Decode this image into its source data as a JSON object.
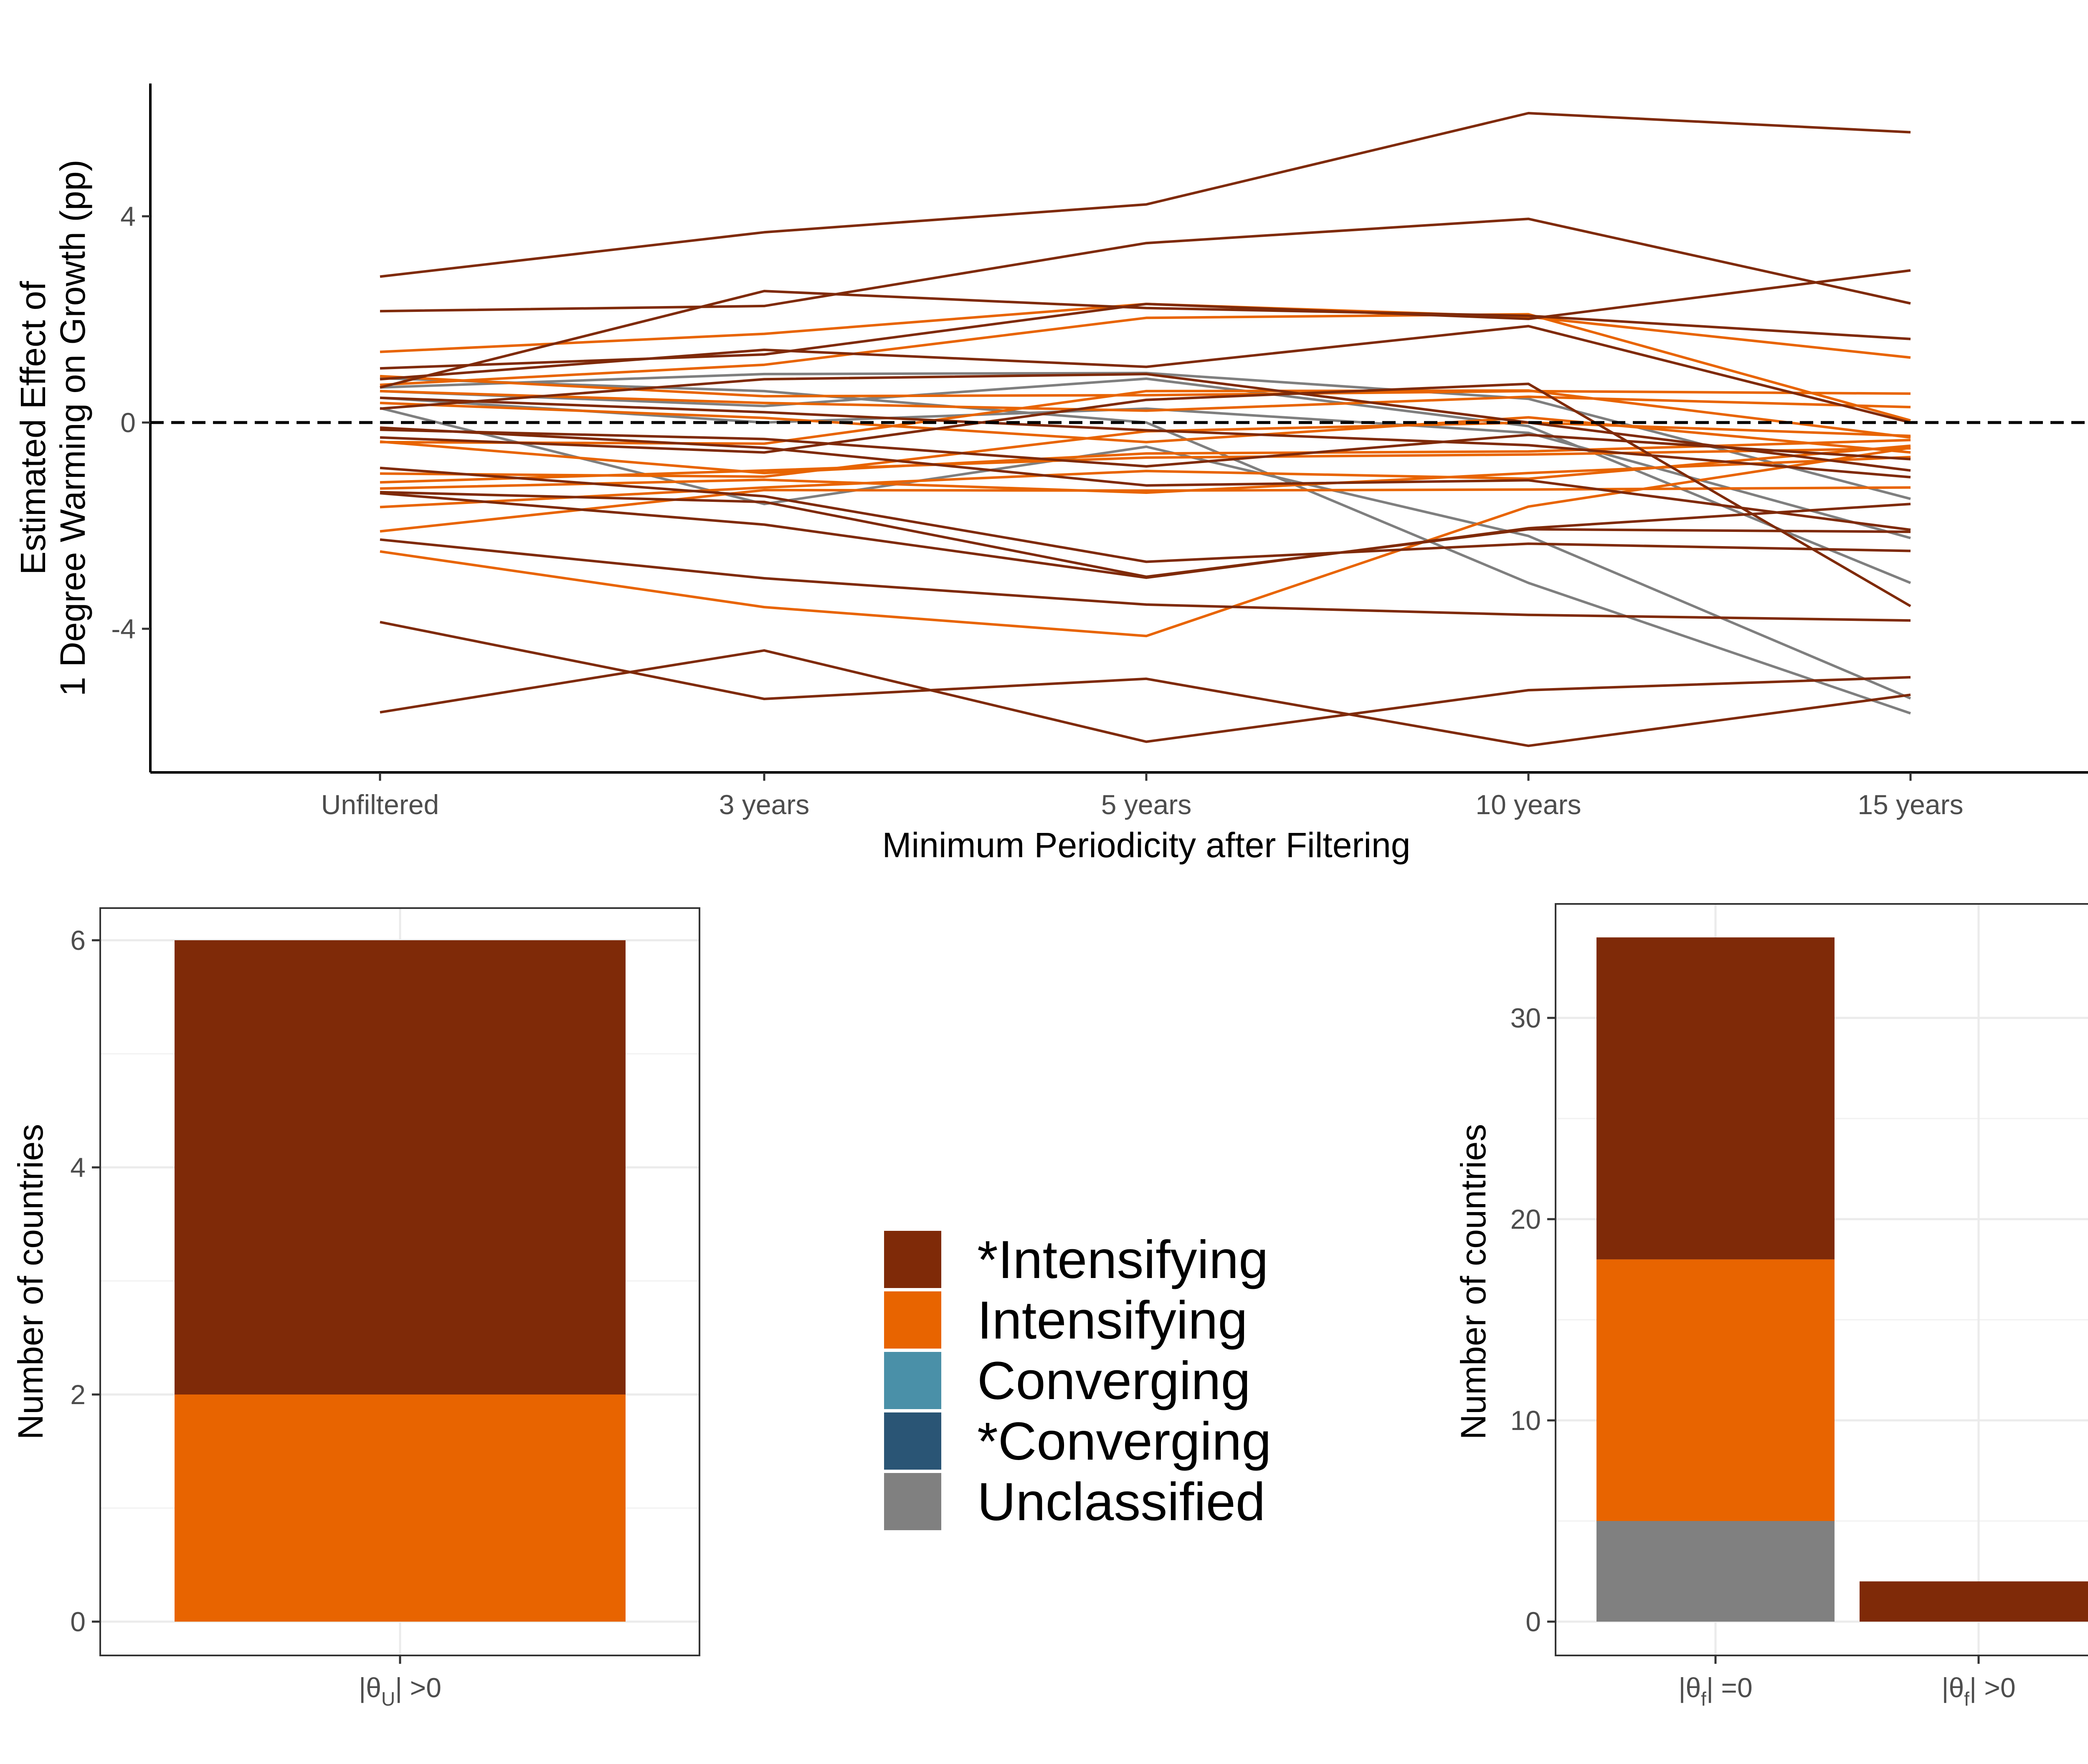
{
  "chart_data": [
    {
      "type": "line",
      "xlabel": "Minimum Periodicity after Filtering",
      "ylabel": [
        "Estimated Effect of",
        "1 Degree Warming on Growth (pp)"
      ],
      "categories": [
        "Unfiltered",
        "3 years",
        "5 years",
        "10 years",
        "15 years"
      ],
      "yticks": [
        -4,
        0,
        4
      ],
      "ylim": [
        -6.8,
        6.6
      ],
      "reference_line": 0,
      "grid": false,
      "series": [
        {
          "class": "*Intensifying",
          "values": [
            2.83,
            3.69,
            4.23,
            6.0,
            5.63
          ]
        },
        {
          "class": "*Intensifying",
          "values": [
            0.68,
            2.55,
            2.22,
            2.07,
            1.62
          ]
        },
        {
          "class": "*Intensifying",
          "values": [
            2.16,
            2.26,
            3.48,
            3.95,
            2.31
          ]
        },
        {
          "class": "*Intensifying",
          "values": [
            0.84,
            1.41,
            1.08,
            1.87,
            0.0
          ]
        },
        {
          "class": "*Intensifying",
          "values": [
            1.05,
            1.32,
            2.3,
            2.01,
            2.95
          ]
        },
        {
          "class": "*Intensifying",
          "values": [
            0.27,
            0.84,
            0.94,
            0.0,
            -0.93
          ]
        },
        {
          "class": "*Intensifying",
          "values": [
            -0.29,
            -0.58,
            0.44,
            0.75,
            -3.56
          ]
        },
        {
          "class": "*Intensifying",
          "values": [
            -0.88,
            -1.43,
            -2.7,
            -2.35,
            -2.49
          ]
        },
        {
          "class": "*Intensifying",
          "values": [
            -1.37,
            -1.98,
            -3.01,
            -2.05,
            -1.58
          ]
        },
        {
          "class": "*Intensifying",
          "values": [
            -0.1,
            -0.49,
            -1.22,
            -1.12,
            -2.08
          ]
        },
        {
          "class": "*Intensifying",
          "values": [
            -2.27,
            -3.02,
            -3.53,
            -3.73,
            -3.84
          ]
        },
        {
          "class": "*Intensifying",
          "values": [
            -3.87,
            -5.36,
            -4.97,
            -6.27,
            -5.28
          ]
        },
        {
          "class": "*Intensifying",
          "values": [
            -5.62,
            -4.42,
            -6.19,
            -5.19,
            -4.94
          ]
        },
        {
          "class": "*Intensifying",
          "values": [
            -1.35,
            -1.54,
            -2.99,
            -2.07,
            -2.12
          ]
        },
        {
          "class": "*Intensifying",
          "values": [
            0.48,
            0.2,
            -0.15,
            -0.44,
            -1.06
          ]
        },
        {
          "class": "*Intensifying",
          "values": [
            -0.14,
            -0.32,
            -0.85,
            -0.24,
            -0.71
          ]
        },
        {
          "class": "Intensifying",
          "values": [
            1.37,
            1.72,
            2.3,
            2.05,
            1.26
          ]
        },
        {
          "class": "Intensifying",
          "values": [
            0.73,
            1.12,
            2.03,
            2.1,
            0.04
          ]
        },
        {
          "class": "Intensifying",
          "values": [
            0.9,
            0.51,
            0.53,
            0.61,
            0.56
          ]
        },
        {
          "class": "Intensifying",
          "values": [
            0.61,
            0.38,
            0.23,
            0.5,
            0.3
          ]
        },
        {
          "class": "Intensifying",
          "values": [
            0.38,
            0.09,
            -0.38,
            0.1,
            -0.58
          ]
        },
        {
          "class": "Intensifying",
          "values": [
            -0.37,
            -0.98,
            -0.6,
            -0.56,
            -0.34
          ]
        },
        {
          "class": "Intensifying",
          "values": [
            -0.99,
            -1.05,
            -0.17,
            0.0,
            -0.26
          ]
        },
        {
          "class": "Intensifying",
          "values": [
            -1.16,
            -0.93,
            -0.68,
            -0.62,
            -0.5
          ]
        },
        {
          "class": "Intensifying",
          "values": [
            -1.64,
            -1.26,
            -0.94,
            -1.09,
            -0.45
          ]
        },
        {
          "class": "Intensifying",
          "values": [
            -2.11,
            -1.31,
            -1.32,
            -1.3,
            -1.26
          ]
        },
        {
          "class": "Intensifying",
          "values": [
            -2.5,
            -3.58,
            -4.14,
            -1.63,
            -0.49
          ]
        },
        {
          "class": "Intensifying",
          "values": [
            -1.28,
            -1.11,
            -1.36,
            -0.98,
            -0.67
          ]
        },
        {
          "class": "Intensifying",
          "values": [
            -0.38,
            -0.41,
            0.61,
            0.62,
            -0.29
          ]
        },
        {
          "class": "Unclassified",
          "values": [
            0.68,
            0.94,
            0.96,
            0.46,
            -1.48
          ]
        },
        {
          "class": "Unclassified",
          "values": [
            0.48,
            0.0,
            0.27,
            -0.2,
            -2.24
          ]
        },
        {
          "class": "Unclassified",
          "values": [
            0.28,
            -1.58,
            -0.47,
            -2.2,
            -5.35
          ]
        },
        {
          "class": "Unclassified",
          "values": [
            0.86,
            0.61,
            0.0,
            -3.11,
            -5.64
          ]
        },
        {
          "class": "Unclassified",
          "values": [
            0.61,
            0.32,
            0.85,
            -0.07,
            -3.11
          ]
        }
      ]
    },
    {
      "type": "bar",
      "stacked": true,
      "ylabel": "Number of countries",
      "categories": [
        "|θU| >0"
      ],
      "yticks": [
        0,
        2,
        4,
        6
      ],
      "ylim": [
        0,
        6.3
      ],
      "series": [
        {
          "class": "Intensifying",
          "values": [
            2
          ]
        },
        {
          "class": "*Intensifying",
          "values": [
            4
          ]
        }
      ]
    },
    {
      "type": "bar",
      "stacked": true,
      "ylabel": "Number of countries",
      "categories": [
        "|θf| =0",
        "|θf| >0"
      ],
      "yticks": [
        0,
        10,
        20,
        30
      ],
      "ylim": [
        0,
        35.5
      ],
      "series": [
        {
          "class": "Unclassified",
          "values": [
            5,
            0
          ]
        },
        {
          "class": "Intensifying",
          "values": [
            13,
            0
          ]
        },
        {
          "class": "*Intensifying",
          "values": [
            16,
            2
          ]
        }
      ]
    }
  ],
  "legend": {
    "entries": [
      "*Intensifying",
      "Intensifying",
      "Converging",
      "*Converging",
      "Unclassified"
    ]
  },
  "colors": {
    "*Intensifying": "#7F2A08",
    "Intensifying": "#E86400",
    "Converging": "#4A90A8",
    "*Converging": "#2A5575",
    "Unclassified": "#808080",
    "line_unclassified": "#7F7F7F"
  }
}
